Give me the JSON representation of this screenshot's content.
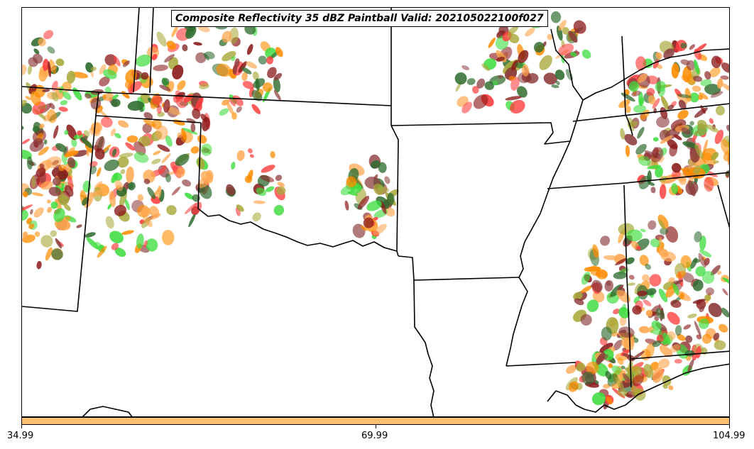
{
  "title": "Composite Reflectivity 35 dBZ Paintball Valid: 202105022100f027",
  "colorbar": {
    "color": "#fdbf6f",
    "ticks": [
      "34.99",
      "69.99",
      "104.99"
    ]
  },
  "palette": {
    "red": "#ff3b3b",
    "dark_red": "#8b1a1a",
    "orange": "#ff8c00",
    "light_orange": "#ffa64d",
    "olive": "#a8a83a",
    "green": "#3ddc3d",
    "dark_green": "#2e6b2e",
    "brown": "#8b3a3a"
  }
}
